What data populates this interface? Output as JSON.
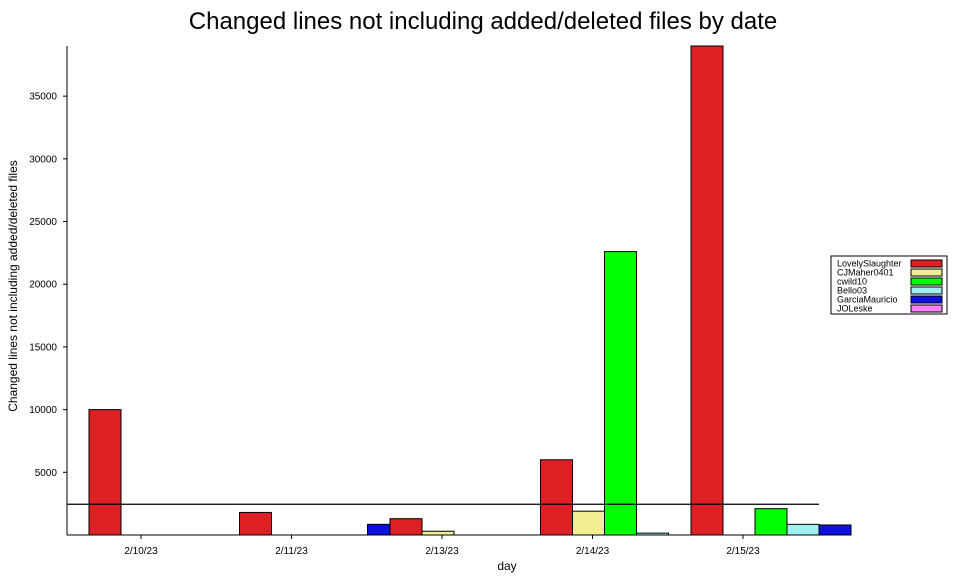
{
  "chart_data": {
    "type": "bar",
    "title": "Changed lines not including added/deleted files by date",
    "xlabel": "day",
    "ylabel": "Changed lines not including added/deleted files",
    "categories": [
      "2/10/23",
      "2/11/23",
      "2/13/23",
      "2/14/23",
      "2/15/23"
    ],
    "yticks": [
      5000,
      10000,
      15000,
      20000,
      25000,
      30000,
      35000
    ],
    "ylim": [
      0,
      39000
    ],
    "reference_line": 2450,
    "legend_position": "right",
    "series": [
      {
        "name": "LovelySlaughter",
        "color": "#dd2024",
        "values": [
          10000,
          1800,
          1300,
          6000,
          39000
        ]
      },
      {
        "name": "CJMaher0401",
        "color": "#f0ee90",
        "values": [
          0,
          0,
          300,
          1900,
          0
        ]
      },
      {
        "name": "cwild10",
        "color": "#00ff00",
        "values": [
          0,
          0,
          0,
          22600,
          2100
        ]
      },
      {
        "name": "Bello03",
        "color": "#a0f0f0",
        "values": [
          0,
          0,
          0,
          150,
          850
        ]
      },
      {
        "name": "GarciaMauricio",
        "color": "#1010dd",
        "values": [
          0,
          850,
          0,
          0,
          800
        ]
      },
      {
        "name": "JOLeske",
        "color": "#ff80ff",
        "values": [
          0,
          0,
          0,
          0,
          0
        ]
      }
    ]
  }
}
